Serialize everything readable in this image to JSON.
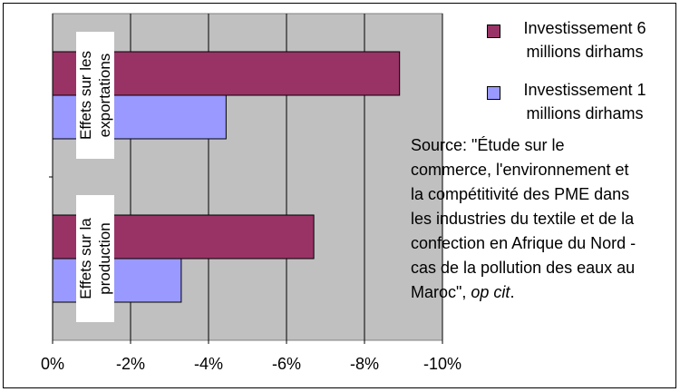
{
  "chart_data": {
    "type": "hbar",
    "categories": [
      "Effets sur les exportations",
      "Effets sur la production"
    ],
    "series": [
      {
        "name": "Investissement 6 millions dirhams",
        "color": "#993366",
        "values": [
          -8.9,
          -6.7
        ]
      },
      {
        "name": "Investissement 1 millions dirhams",
        "color": "#9999ff",
        "values": [
          -4.45,
          -3.3
        ]
      }
    ],
    "xlim": [
      0,
      -10
    ],
    "xticks": [
      {
        "value": 0,
        "label": "0%"
      },
      {
        "value": -2,
        "label": "-2%"
      },
      {
        "value": -4,
        "label": "-4%"
      },
      {
        "value": -6,
        "label": "-6%"
      },
      {
        "value": -8,
        "label": "-8%"
      },
      {
        "value": -10,
        "label": "-10%"
      }
    ],
    "grid": true,
    "legend": "top-right",
    "annotation": [
      "Source: \"Étude sur le",
      "commerce, l'environnement et",
      "la compétitivité des PME dans",
      "les industries du textile et de la",
      "confection en Afrique du Nord -",
      "cas de la pollution des eaux au"
    ],
    "annotation_end": [
      "Maroc\", ",
      "op cit",
      "."
    ]
  }
}
